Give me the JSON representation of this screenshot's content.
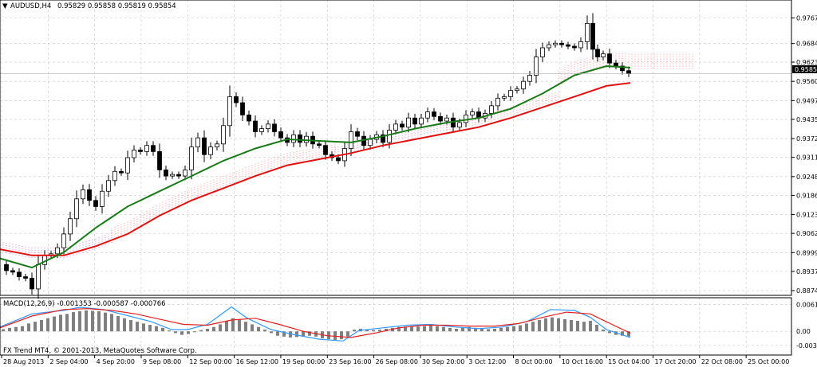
{
  "header": {
    "symbol": "AUDUSD,H4",
    "ohlc": "0.95829 0.95858 0.95819 0.95854"
  },
  "indicator": {
    "label": "MACD(12,26,9) -0.001353 -0.000587 -0.000766"
  },
  "footer": {
    "copyright": "FX Trend MT4, © 2001-2013, MetaQuotes Software Corp."
  },
  "current_price": "0.95854",
  "colors": {
    "up_candle": "#ffffff",
    "down_candle": "#000000",
    "ema_fast": "#1a7a1a",
    "ema_slow": "#e01010",
    "cloud_bull": "#f08080",
    "cloud_bear": "#c060c0",
    "signal_line": "#e02020",
    "macd_line": "#3399ff",
    "grid": "#c8c8c8"
  },
  "chart_data": [
    {
      "type": "candlestick",
      "title": "AUDUSD,H4",
      "y_ticks": [
        "0.97675",
        "0.96840",
        "0.96230",
        "0.95600",
        "0.94970",
        "0.94355",
        "0.93725",
        "0.93110",
        "0.92480",
        "0.91865",
        "0.91235",
        "0.90620",
        "0.89990",
        "0.89375",
        "0.88745"
      ],
      "y_tick_values": [
        0.97675,
        0.9684,
        0.9623,
        0.956,
        0.9497,
        0.94355,
        0.93725,
        0.9311,
        0.9248,
        0.91865,
        0.91235,
        0.9062,
        0.8999,
        0.89375,
        0.88745
      ],
      "x_ticks": [
        "28 Aug 2013",
        "2 Sep 04:00",
        "4 Sep 20:00",
        "9 Sep 08:00",
        "12 Sep 00:00",
        "16 Sep 12:00",
        "19 Sep 00:00",
        "23 Sep 16:00",
        "26 Sep 08:00",
        "30 Sep 20:00",
        "3 Oct 12:00",
        "8 Oct 00:00",
        "10 Oct 16:00",
        "15 Oct 04:00",
        "17 Oct 20:00",
        "22 Oct 08:00",
        "25 Oct 00:00"
      ],
      "ylim": [
        0.8872,
        0.979
      ],
      "grid": true,
      "close_path": [
        [
          0,
          0.896
        ],
        [
          8,
          0.894
        ],
        [
          16,
          0.8935
        ],
        [
          24,
          0.892
        ],
        [
          32,
          0.8915
        ],
        [
          40,
          0.888
        ],
        [
          48,
          0.896
        ],
        [
          56,
          0.899
        ],
        [
          64,
          0.8995
        ],
        [
          72,
          0.9015
        ],
        [
          80,
          0.906
        ],
        [
          88,
          0.911
        ],
        [
          96,
          0.9175
        ],
        [
          104,
          0.9205
        ],
        [
          112,
          0.917
        ],
        [
          120,
          0.915
        ],
        [
          128,
          0.92
        ],
        [
          136,
          0.9235
        ],
        [
          144,
          0.9265
        ],
        [
          152,
          0.926
        ],
        [
          160,
          0.931
        ],
        [
          168,
          0.9335
        ],
        [
          176,
          0.933
        ],
        [
          184,
          0.935
        ],
        [
          192,
          0.933
        ],
        [
          200,
          0.927
        ],
        [
          208,
          0.925
        ],
        [
          216,
          0.9255
        ],
        [
          224,
          0.925
        ],
        [
          232,
          0.927
        ],
        [
          240,
          0.9345
        ],
        [
          248,
          0.9375
        ],
        [
          256,
          0.932
        ],
        [
          264,
          0.9345
        ],
        [
          272,
          0.9355
        ],
        [
          280,
          0.9415
        ],
        [
          288,
          0.951
        ],
        [
          296,
          0.949
        ],
        [
          304,
          0.945
        ],
        [
          312,
          0.943
        ],
        [
          320,
          0.9395
        ],
        [
          328,
          0.9405
        ],
        [
          336,
          0.942
        ],
        [
          344,
          0.9395
        ],
        [
          352,
          0.9375
        ],
        [
          360,
          0.936
        ],
        [
          368,
          0.9385
        ],
        [
          376,
          0.936
        ],
        [
          384,
          0.938
        ],
        [
          392,
          0.9355
        ],
        [
          400,
          0.935
        ],
        [
          408,
          0.932
        ],
        [
          416,
          0.931
        ],
        [
          424,
          0.93
        ],
        [
          432,
          0.934
        ],
        [
          440,
          0.9395
        ],
        [
          448,
          0.938
        ],
        [
          456,
          0.935
        ],
        [
          464,
          0.937
        ],
        [
          472,
          0.9385
        ],
        [
          480,
          0.936
        ],
        [
          488,
          0.94
        ],
        [
          496,
          0.942
        ],
        [
          504,
          0.941
        ],
        [
          512,
          0.944
        ],
        [
          520,
          0.942
        ],
        [
          528,
          0.944
        ],
        [
          536,
          0.946
        ],
        [
          544,
          0.9445
        ],
        [
          552,
          0.943
        ],
        [
          560,
          0.944
        ],
        [
          568,
          0.941
        ],
        [
          576,
          0.9425
        ],
        [
          584,
          0.945
        ],
        [
          592,
          0.946
        ],
        [
          600,
          0.944
        ],
        [
          608,
          0.9455
        ],
        [
          616,
          0.948
        ],
        [
          624,
          0.9505
        ],
        [
          632,
          0.951
        ],
        [
          640,
          0.953
        ],
        [
          648,
          0.9535
        ],
        [
          656,
          0.956
        ],
        [
          664,
          0.958
        ],
        [
          672,
          0.964
        ],
        [
          680,
          0.967
        ],
        [
          688,
          0.968
        ],
        [
          696,
          0.9685
        ],
        [
          704,
          0.968
        ],
        [
          712,
          0.9675
        ],
        [
          720,
          0.967
        ],
        [
          728,
          0.969
        ],
        [
          736,
          0.975
        ],
        [
          742,
          0.9665
        ],
        [
          748,
          0.964
        ],
        [
          756,
          0.965
        ],
        [
          764,
          0.962
        ],
        [
          772,
          0.961
        ],
        [
          780,
          0.9595
        ],
        [
          788,
          0.9585
        ]
      ],
      "ema_fast": [
        [
          0,
          0.898
        ],
        [
          40,
          0.895
        ],
        [
          80,
          0.9
        ],
        [
          120,
          0.908
        ],
        [
          160,
          0.915
        ],
        [
          200,
          0.92
        ],
        [
          240,
          0.925
        ],
        [
          280,
          0.93
        ],
        [
          320,
          0.934
        ],
        [
          360,
          0.937
        ],
        [
          400,
          0.9365
        ],
        [
          440,
          0.936
        ],
        [
          480,
          0.938
        ],
        [
          520,
          0.9405
        ],
        [
          560,
          0.9425
        ],
        [
          600,
          0.944
        ],
        [
          640,
          0.947
        ],
        [
          680,
          0.952
        ],
        [
          720,
          0.958
        ],
        [
          760,
          0.961
        ],
        [
          790,
          0.9605
        ]
      ],
      "ema_slow": [
        [
          0,
          0.901
        ],
        [
          40,
          0.899
        ],
        [
          80,
          0.899
        ],
        [
          120,
          0.902
        ],
        [
          160,
          0.906
        ],
        [
          200,
          0.912
        ],
        [
          240,
          0.917
        ],
        [
          280,
          0.921
        ],
        [
          320,
          0.925
        ],
        [
          360,
          0.9285
        ],
        [
          400,
          0.9305
        ],
        [
          440,
          0.9325
        ],
        [
          480,
          0.935
        ],
        [
          520,
          0.937
        ],
        [
          560,
          0.939
        ],
        [
          600,
          0.941
        ],
        [
          640,
          0.944
        ],
        [
          680,
          0.9475
        ],
        [
          720,
          0.951
        ],
        [
          760,
          0.9545
        ],
        [
          790,
          0.9555
        ]
      ],
      "current_price": 0.95854
    },
    {
      "type": "line",
      "title": "MACD(12,26,9) -0.001353 -0.000587 -0.000766",
      "y_ticks": [
        "0.006126",
        "0.00",
        "-0.003192"
      ],
      "y_tick_values": [
        0.006126,
        0.0,
        -0.003192
      ],
      "ylim": [
        -0.0036,
        0.0066
      ],
      "histogram": [
        [
          0,
          0.0005
        ],
        [
          8,
          0.0008
        ],
        [
          16,
          0.001
        ],
        [
          24,
          0.0012
        ],
        [
          32,
          0.0018
        ],
        [
          40,
          0.0022
        ],
        [
          48,
          0.0026
        ],
        [
          56,
          0.003
        ],
        [
          64,
          0.0034
        ],
        [
          72,
          0.0038
        ],
        [
          80,
          0.004
        ],
        [
          88,
          0.0044
        ],
        [
          96,
          0.0046
        ],
        [
          104,
          0.0048
        ],
        [
          112,
          0.0047
        ],
        [
          120,
          0.0046
        ],
        [
          128,
          0.0043
        ],
        [
          136,
          0.004
        ],
        [
          144,
          0.0035
        ],
        [
          152,
          0.003
        ],
        [
          160,
          0.0026
        ],
        [
          168,
          0.0022
        ],
        [
          176,
          0.0018
        ],
        [
          184,
          0.0015
        ],
        [
          192,
          0.0012
        ],
        [
          200,
          0.0008
        ],
        [
          208,
          0.0002
        ],
        [
          216,
          -0.0004
        ],
        [
          224,
          -0.0008
        ],
        [
          232,
          -0.0006
        ],
        [
          240,
          -0.0002
        ],
        [
          248,
          0.0003
        ],
        [
          256,
          0.0006
        ],
        [
          264,
          0.001
        ],
        [
          272,
          0.0016
        ],
        [
          280,
          0.0024
        ],
        [
          288,
          0.003
        ],
        [
          296,
          0.0028
        ],
        [
          304,
          0.0022
        ],
        [
          312,
          0.0016
        ],
        [
          320,
          0.001
        ],
        [
          328,
          0.0004
        ],
        [
          336,
          -0.0004
        ],
        [
          344,
          -0.001
        ],
        [
          352,
          -0.0012
        ],
        [
          360,
          -0.0014
        ],
        [
          368,
          -0.0013
        ],
        [
          376,
          -0.0012
        ],
        [
          384,
          -0.001
        ],
        [
          392,
          -0.0012
        ],
        [
          400,
          -0.0016
        ],
        [
          408,
          -0.0018
        ],
        [
          416,
          -0.002
        ],
        [
          424,
          -0.0018
        ],
        [
          432,
          -0.0012
        ],
        [
          440,
          0.0004
        ],
        [
          448,
          0.0006
        ],
        [
          456,
          0.0004
        ],
        [
          464,
          0.0003
        ],
        [
          472,
          0.0004
        ],
        [
          480,
          0.0006
        ],
        [
          488,
          0.0008
        ],
        [
          496,
          0.001
        ],
        [
          504,
          0.0011
        ],
        [
          512,
          0.0012
        ],
        [
          520,
          0.0011
        ],
        [
          528,
          0.0012
        ],
        [
          536,
          0.0013
        ],
        [
          544,
          0.0012
        ],
        [
          552,
          0.001
        ],
        [
          560,
          0.0008
        ],
        [
          568,
          0.0006
        ],
        [
          576,
          0.0008
        ],
        [
          584,
          0.001
        ],
        [
          592,
          0.0008
        ],
        [
          600,
          0.0006
        ],
        [
          608,
          0.0005
        ],
        [
          616,
          0.0006
        ],
        [
          624,
          0.0008
        ],
        [
          632,
          0.001
        ],
        [
          640,
          0.0012
        ],
        [
          648,
          0.0014
        ],
        [
          656,
          0.0018
        ],
        [
          664,
          0.0022
        ],
        [
          672,
          0.0026
        ],
        [
          680,
          0.003
        ],
        [
          688,
          0.0032
        ],
        [
          696,
          0.003
        ],
        [
          704,
          0.0028
        ],
        [
          712,
          0.0026
        ],
        [
          720,
          0.0024
        ],
        [
          728,
          0.0022
        ],
        [
          736,
          0.0024
        ],
        [
          744,
          0.0015
        ],
        [
          752,
          0.0004
        ],
        [
          760,
          -0.0004
        ],
        [
          768,
          -0.0008
        ],
        [
          776,
          -0.001
        ],
        [
          784,
          -0.0012
        ]
      ],
      "macd_line": [
        [
          0,
          0.001
        ],
        [
          40,
          0.004
        ],
        [
          80,
          0.0048
        ],
        [
          100,
          0.0055
        ],
        [
          130,
          0.005
        ],
        [
          160,
          0.0036
        ],
        [
          190,
          0.0022
        ],
        [
          215,
          0.0004
        ],
        [
          235,
          0.0004
        ],
        [
          260,
          0.0016
        ],
        [
          290,
          0.0056
        ],
        [
          310,
          0.003
        ],
        [
          340,
          0.0004
        ],
        [
          370,
          -0.0008
        ],
        [
          400,
          -0.0018
        ],
        [
          430,
          -0.0022
        ],
        [
          450,
          0.0002
        ],
        [
          480,
          0.0008
        ],
        [
          510,
          0.0014
        ],
        [
          540,
          0.0016
        ],
        [
          570,
          0.001
        ],
        [
          600,
          0.0006
        ],
        [
          630,
          0.001
        ],
        [
          660,
          0.0022
        ],
        [
          690,
          0.005
        ],
        [
          720,
          0.0048
        ],
        [
          740,
          0.0032
        ],
        [
          760,
          0.0004
        ],
        [
          790,
          -0.0014
        ]
      ],
      "signal_line": [
        [
          0,
          0.0008
        ],
        [
          40,
          0.0035
        ],
        [
          80,
          0.005
        ],
        [
          110,
          0.0052
        ],
        [
          140,
          0.0048
        ],
        [
          170,
          0.004
        ],
        [
          200,
          0.0028
        ],
        [
          230,
          0.0016
        ],
        [
          260,
          0.0014
        ],
        [
          290,
          0.0026
        ],
        [
          320,
          0.003
        ],
        [
          350,
          0.0016
        ],
        [
          380,
          0.0
        ],
        [
          410,
          -0.001
        ],
        [
          440,
          -0.0014
        ],
        [
          470,
          -0.0004
        ],
        [
          500,
          0.0008
        ],
        [
          530,
          0.0014
        ],
        [
          560,
          0.0014
        ],
        [
          590,
          0.0012
        ],
        [
          620,
          0.0012
        ],
        [
          650,
          0.0018
        ],
        [
          680,
          0.0032
        ],
        [
          710,
          0.0044
        ],
        [
          740,
          0.004
        ],
        [
          760,
          0.0022
        ],
        [
          790,
          -0.0004
        ]
      ]
    }
  ]
}
